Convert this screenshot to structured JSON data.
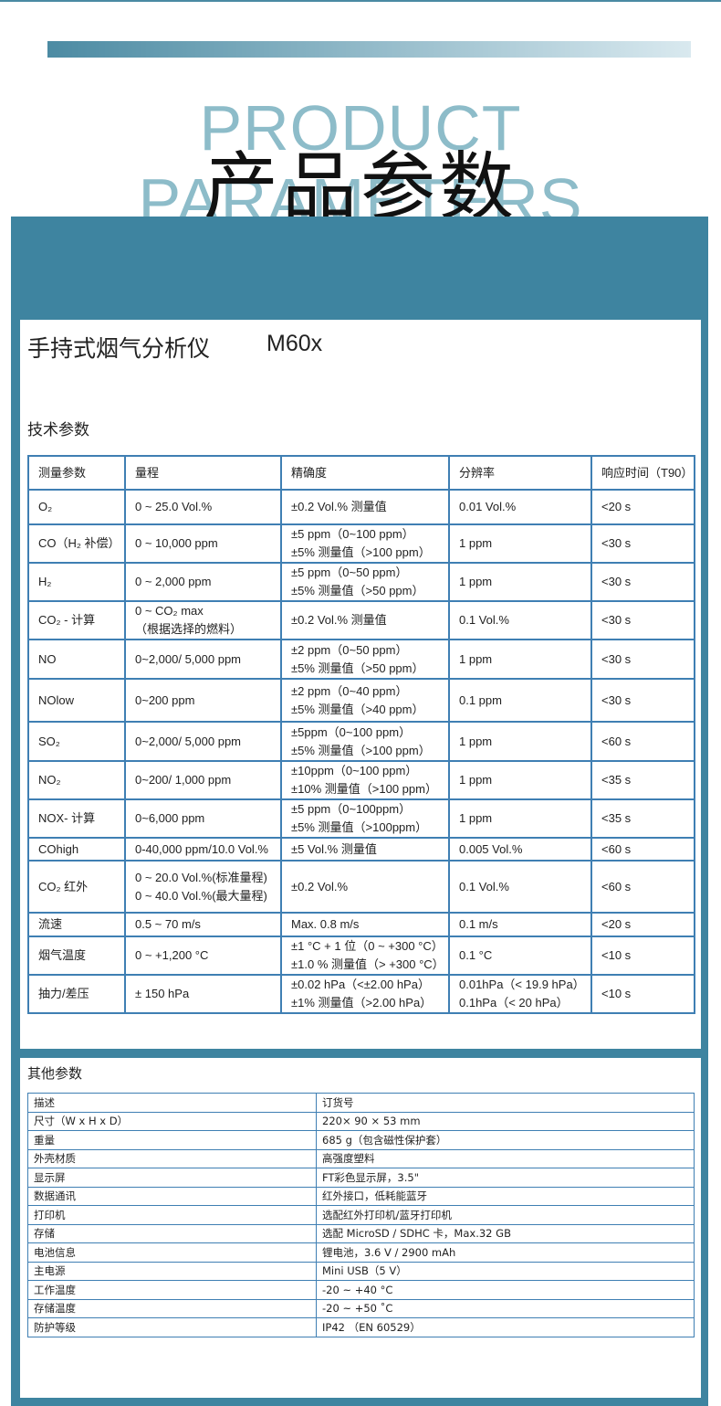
{
  "header": {
    "title_en": "PRODUCT PARAMETERS",
    "title_cn": "产品参数"
  },
  "product": {
    "name": "手持式烟气分析仪",
    "model": "M60x"
  },
  "tech": {
    "heading": "技术参数",
    "columns": [
      "测量参数",
      "量程",
      "精确度",
      "分辨率",
      "响应时间（T90）"
    ],
    "rows": [
      [
        "O₂",
        "0 ~ 25.0 Vol.%",
        "±0.2 Vol.% 测量值",
        "0.01 Vol.%",
        "<20 s"
      ],
      [
        "CO（H₂ 补偿）",
        "0 ~ 10,000 ppm",
        "±5 ppm（0~100 ppm）\n±5% 测量值（>100 ppm）",
        "1 ppm",
        "<30 s"
      ],
      [
        "H₂",
        "0 ~ 2,000 ppm",
        "±5 ppm（0~50 ppm）\n±5% 测量值（>50 ppm）",
        "1 ppm",
        "<30 s"
      ],
      [
        "CO₂ - 计算",
        "0 ~ CO₂ max\n（根据选择的燃料）",
        "±0.2 Vol.% 测量值",
        "0.1 Vol.%",
        "<30 s"
      ],
      [
        "NO",
        "0~2,000/ 5,000 ppm",
        "±2 ppm（0~50 ppm）\n±5% 测量值（>50 ppm）",
        "1 ppm",
        "<30 s"
      ],
      [
        "NOlow",
        "0~200 ppm",
        "±2 ppm（0~40 ppm）\n±5% 测量值（>40 ppm）",
        "0.1 ppm",
        "<30 s"
      ],
      [
        "SO₂",
        "0~2,000/ 5,000 ppm",
        "±5ppm（0~100 ppm）\n±5% 测量值（>100 ppm）",
        "1 ppm",
        "<60 s"
      ],
      [
        "NO₂",
        "0~200/ 1,000 ppm",
        "±10ppm（0~100 ppm）\n±10% 测量值（>100 ppm）",
        "1 ppm",
        "<35 s"
      ],
      [
        "NOX- 计算",
        "0~6,000 ppm",
        "±5 ppm（0~100ppm）\n±5% 测量值（>100ppm）",
        "1 ppm",
        "<35 s"
      ],
      [
        "COhigh",
        "0-40,000 ppm/10.0 Vol.%",
        "±5 Vol.% 测量值",
        "0.005 Vol.%",
        "<60 s"
      ],
      [
        "CO₂ 红外",
        "0 ~ 20.0 Vol.%(标准量程)\n0 ~ 40.0 Vol.%(最大量程)",
        "±0.2 Vol.%",
        "0.1 Vol.%",
        "<60 s"
      ],
      [
        "流速",
        "0.5 ~ 70 m/s",
        "Max. 0.8 m/s",
        "0.1 m/s",
        "<20 s"
      ],
      [
        "烟气温度",
        "0 ~ +1,200 °C",
        "±1 °C + 1 位（0 ~ +300 °C）\n±1.0 % 测量值（> +300 °C）",
        "0.1 °C",
        "<10 s"
      ],
      [
        "抽力/差压",
        "± 150 hPa",
        "±0.02 hPa（<±2.00 hPa）\n±1% 测量值（>2.00 hPa）",
        "0.01hPa（< 19.9 hPa）\n0.1hPa（< 20 hPa）",
        "<10 s"
      ]
    ]
  },
  "other": {
    "heading": "其他参数",
    "columns": [
      "描述",
      "订货号"
    ],
    "rows": [
      [
        "尺寸（W x H x D）",
        "220× 90 × 53 mm"
      ],
      [
        "重量",
        "685 g（包含磁性保护套）"
      ],
      [
        "外壳材质",
        "高强度塑料"
      ],
      [
        "显示屏",
        "FT彩色显示屏，3.5\""
      ],
      [
        "数据通讯",
        "红外接口，低耗能蓝牙"
      ],
      [
        "打印机",
        "选配红外打印机/蓝牙打印机"
      ],
      [
        "存储",
        "选配 MicroSD / SDHC 卡，Max.32 GB"
      ],
      [
        "电池信息",
        "锂电池，3.6 V / 2900 mAh"
      ],
      [
        "主电源",
        "Mini USB（5 V）"
      ],
      [
        "工作温度",
        "-20 ~ +40 °C"
      ],
      [
        "存储温度",
        "-20 ~ +50 ˚C"
      ],
      [
        "防护等级",
        "IP42 （EN 60529）"
      ]
    ]
  }
}
